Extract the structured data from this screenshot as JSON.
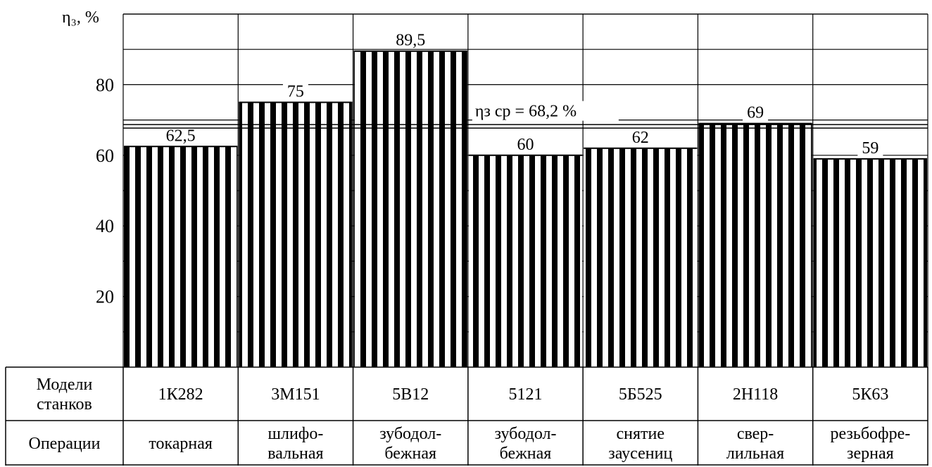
{
  "chart_data": {
    "type": "bar",
    "ylabel": "η₃, %",
    "ylim": [
      0,
      100
    ],
    "yticks": [
      20,
      40,
      60,
      80
    ],
    "categories": [
      "1К282",
      "3М151",
      "5В12",
      "5121",
      "5Б525",
      "2Н118",
      "5К63"
    ],
    "values": [
      62.5,
      75,
      89.5,
      60,
      62,
      69,
      59
    ],
    "value_labels": [
      "62,5",
      "75",
      "89,5",
      "60",
      "62",
      "69",
      "59"
    ],
    "mean": {
      "value": 68.2,
      "label": "ηз ср = 68,2 %"
    },
    "grid": true
  },
  "table": {
    "rows": [
      {
        "header": [
          "Модели",
          "станков"
        ],
        "cells": [
          [
            "1К282"
          ],
          [
            "3М151"
          ],
          [
            "5В12"
          ],
          [
            "5121"
          ],
          [
            "5Б525"
          ],
          [
            "2Н118"
          ],
          [
            "5К63"
          ]
        ]
      },
      {
        "header": [
          "Операции"
        ],
        "cells": [
          [
            "токарная"
          ],
          [
            "шлифо-",
            "вальная"
          ],
          [
            "зубодол-",
            "бежная"
          ],
          [
            "зубодол-",
            "бежная"
          ],
          [
            "снятие",
            "заусениц"
          ],
          [
            "свер-",
            "лильная"
          ],
          [
            "резьбофре-",
            "зерная"
          ]
        ]
      }
    ]
  }
}
